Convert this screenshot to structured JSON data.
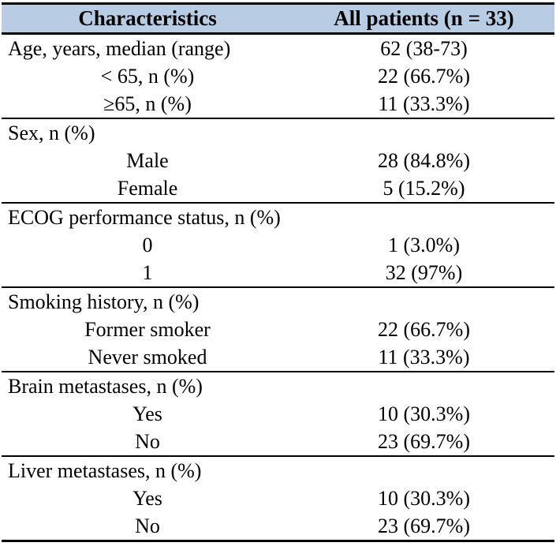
{
  "table": {
    "header": {
      "col1": "Characteristics",
      "col2": "All patients (n = 33)"
    },
    "header_bg_color": "#b8cce4",
    "border_color": "#000000",
    "rows": [
      {
        "label": "Age, years, median (range)",
        "value": "62 (38-73)"
      },
      {
        "label": "< 65, n (%)",
        "value": "22 (66.7%)"
      },
      {
        "label": "≥65, n (%)",
        "value": "11 (33.3%)"
      },
      {
        "label": "Sex, n (%)",
        "value": ""
      },
      {
        "label": "Male",
        "value": "28 (84.8%)"
      },
      {
        "label": "Female",
        "value": "5 (15.2%)"
      },
      {
        "label": "ECOG performance status, n (%)",
        "value": ""
      },
      {
        "label": "0",
        "value": "1 (3.0%)"
      },
      {
        "label": "1",
        "value": "32 (97%)"
      },
      {
        "label": "Smoking history, n (%)",
        "value": ""
      },
      {
        "label": "Former smoker",
        "value": "22 (66.7%)"
      },
      {
        "label": "Never smoked",
        "value": "11 (33.3%)"
      },
      {
        "label": "Brain metastases, n (%)",
        "value": ""
      },
      {
        "label": "Yes",
        "value": "10 (30.3%)"
      },
      {
        "label": "No",
        "value": "23 (69.7%)"
      },
      {
        "label": "Liver metastases, n (%)",
        "value": ""
      },
      {
        "label": "Yes",
        "value": "10 (30.3%)"
      },
      {
        "label": "No",
        "value": "23 (69.7%)"
      }
    ]
  }
}
